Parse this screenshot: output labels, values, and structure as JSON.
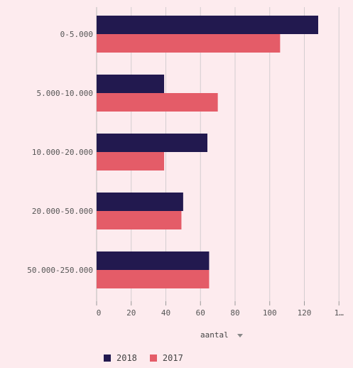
{
  "chart_data": {
    "type": "bar",
    "orientation": "horizontal",
    "categories": [
      "0-5.000",
      "5.000-10.000",
      "10.000-20.000",
      "20.000-50.000",
      "50.000-250.000"
    ],
    "series": [
      {
        "name": "2018",
        "color": "#22194f",
        "values": [
          128,
          39,
          64,
          50,
          65
        ]
      },
      {
        "name": "2017",
        "color": "#e45c68",
        "values": [
          106,
          70,
          39,
          49,
          65
        ]
      }
    ],
    "xlabel": "aantal",
    "xlim": [
      0,
      140
    ],
    "xticks": [
      "0",
      "20",
      "40",
      "60",
      "80",
      "100",
      "120",
      "1…"
    ],
    "grid": true,
    "legend_position": "bottom"
  }
}
